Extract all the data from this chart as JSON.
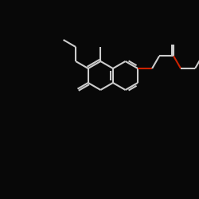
{
  "bg_color": "#080808",
  "bond_color": "#cccccc",
  "oxygen_color": "#cc2200",
  "lw": 1.5,
  "figsize": [
    2.5,
    2.5
  ],
  "dpi": 100,
  "xlim": [
    0,
    10
  ],
  "ylim": [
    0,
    10
  ]
}
